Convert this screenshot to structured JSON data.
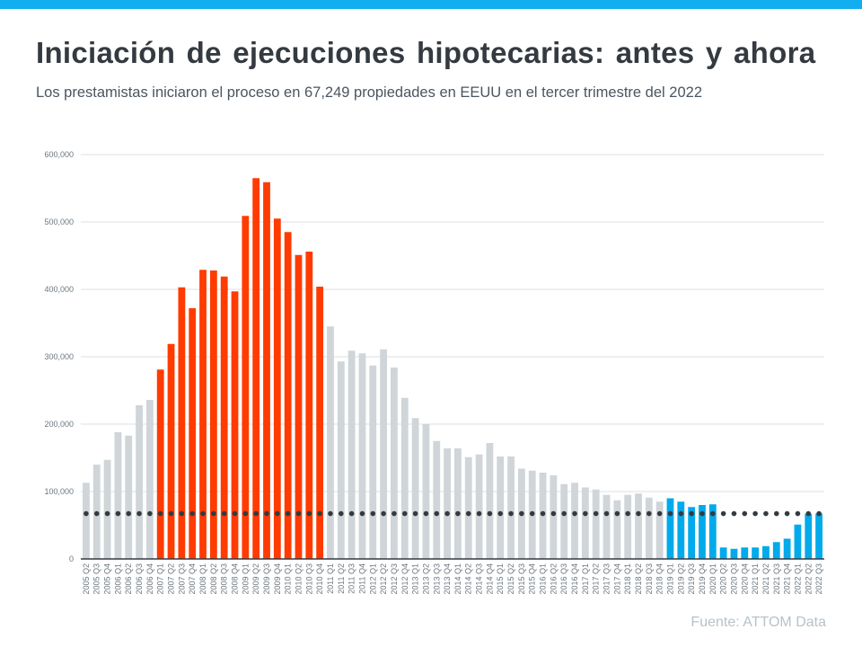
{
  "header": {
    "title": "Iniciación de ejecuciones hipotecarias: antes y ahora",
    "subtitle": "Los prestamistas iniciaron el proceso en 67,249 propiedades en EEUU en el tercer trimestre del 2022"
  },
  "footer": {
    "source": "Fuente: ATTOM Data"
  },
  "colors": {
    "top_bar": "#12aff0",
    "gray": "#cfd5d8",
    "red": "#ff3b00",
    "blue": "#00aaeb",
    "dots": "#343a40",
    "grid": "#dcdfe2"
  },
  "chart_data": {
    "type": "bar",
    "title": "Iniciación de ejecuciones hipotecarias: antes y ahora",
    "xlabel": "",
    "ylabel": "",
    "ylim": [
      0,
      600000
    ],
    "yticks": [
      "0",
      "100,000",
      "200,000",
      "300,000",
      "400,000",
      "500,000",
      "600,000"
    ],
    "grid": true,
    "categories": [
      "2005 Q2",
      "2005 Q3",
      "2005 Q4",
      "2006 Q1",
      "2006 Q2",
      "2006 Q3",
      "2006 Q4",
      "2007 Q1",
      "2007 Q2",
      "2007 Q3",
      "2007 Q4",
      "2008 Q1",
      "2008 Q2",
      "2008 Q3",
      "2008 Q4",
      "2009 Q1",
      "2009 Q2",
      "2009 Q3",
      "2009 Q4",
      "2010 Q1",
      "2010 Q2",
      "2010 Q3",
      "2010 Q4",
      "2011 Q1",
      "2011 Q2",
      "2011 Q3",
      "2011 Q4",
      "2012 Q1",
      "2012 Q2",
      "2012 Q3",
      "2012 Q4",
      "2013 Q1",
      "2013 Q2",
      "2013 Q3",
      "2013 Q4",
      "2014 Q1",
      "2014 Q2",
      "2014 Q3",
      "2014 Q4",
      "2015 Q1",
      "2015 Q2",
      "2015 Q3",
      "2015 Q4",
      "2016 Q1",
      "2016 Q2",
      "2016 Q3",
      "2016 Q4",
      "2017 Q1",
      "2017 Q2",
      "2017 Q3",
      "2017 Q4",
      "2018 Q1",
      "2018 Q2",
      "2018 Q3",
      "2018 Q4",
      "2019 Q1",
      "2019 Q2",
      "2019 Q3",
      "2019 Q4",
      "2020 Q1",
      "2020 Q2",
      "2020 Q3",
      "2020 Q4",
      "2021 Q1",
      "2021 Q2",
      "2021 Q3",
      "2021 Q4",
      "2022 Q1",
      "2022 Q2",
      "2022 Q3"
    ],
    "values": [
      113000,
      140000,
      147000,
      188000,
      183000,
      228000,
      236000,
      281000,
      319000,
      403000,
      372000,
      429000,
      428000,
      419000,
      397000,
      509000,
      565000,
      559000,
      505000,
      485000,
      451000,
      456000,
      404000,
      345000,
      293000,
      309000,
      305000,
      287000,
      311000,
      284000,
      239000,
      209000,
      200000,
      175000,
      164000,
      164000,
      151000,
      155000,
      172000,
      152000,
      152000,
      134000,
      131000,
      128000,
      124000,
      111000,
      113000,
      106000,
      103000,
      95000,
      87000,
      95000,
      97000,
      91000,
      85000,
      90000,
      85000,
      77000,
      80000,
      81000,
      17000,
      15000,
      17000,
      17000,
      19000,
      25000,
      30000,
      51000,
      67000,
      67249
    ],
    "bar_colors": [
      "gray",
      "gray",
      "gray",
      "gray",
      "gray",
      "gray",
      "gray",
      "red",
      "red",
      "red",
      "red",
      "red",
      "red",
      "red",
      "red",
      "red",
      "red",
      "red",
      "red",
      "red",
      "red",
      "red",
      "red",
      "gray",
      "gray",
      "gray",
      "gray",
      "gray",
      "gray",
      "gray",
      "gray",
      "gray",
      "gray",
      "gray",
      "gray",
      "gray",
      "gray",
      "gray",
      "gray",
      "gray",
      "gray",
      "gray",
      "gray",
      "gray",
      "gray",
      "gray",
      "gray",
      "gray",
      "gray",
      "gray",
      "gray",
      "gray",
      "gray",
      "gray",
      "gray",
      "blue",
      "blue",
      "blue",
      "blue",
      "blue",
      "blue",
      "blue",
      "blue",
      "blue",
      "blue",
      "blue",
      "blue",
      "blue",
      "blue",
      "blue"
    ],
    "reference_line": {
      "value": 67249,
      "style": "dotted"
    }
  }
}
